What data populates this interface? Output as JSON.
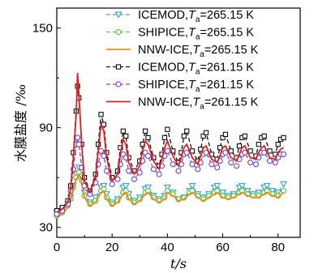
{
  "chart_data": {
    "type": "line",
    "xlabel": "t/s",
    "ylabel": "水膜盐度 /‰",
    "xlim": [
      0,
      88
    ],
    "ylim": [
      24,
      162
    ],
    "x_ticks": [
      "0",
      "20",
      "40",
      "60",
      "80"
    ],
    "y_ticks": [
      "30",
      "90",
      "150"
    ],
    "series": [
      {
        "name": "ICEMOD,Ta=265.15 K",
        "label_main": "ICEMOD,",
        "label_var": "T",
        "label_sub": "a",
        "label_tail": "=265.15 K",
        "color": "#3aa6dd",
        "line": "dashed",
        "marker": "triangle-down",
        "x": [
          0,
          2,
          4,
          5,
          6,
          7,
          8,
          9,
          10,
          12,
          14,
          16,
          17,
          18,
          20,
          22,
          24,
          25,
          26,
          28,
          30,
          32,
          33,
          35,
          37,
          39,
          40,
          42,
          44,
          46,
          48,
          49,
          51,
          53,
          55,
          57,
          58,
          60,
          62,
          64,
          66,
          67,
          69,
          71,
          73,
          75,
          76,
          78,
          80,
          82
        ],
        "y": [
          39,
          41,
          44,
          48,
          55,
          62,
          66,
          61,
          51,
          45,
          48,
          54,
          55,
          50,
          45,
          47,
          54,
          55,
          50,
          46,
          48,
          53,
          54,
          49,
          47,
          49,
          54,
          51,
          47,
          48,
          52,
          55,
          50,
          48,
          50,
          54,
          55,
          51,
          49,
          50,
          54,
          55,
          52,
          50,
          51,
          54,
          55,
          52,
          51,
          56
        ]
      },
      {
        "name": "SHIPICE,Ta=265.15 K",
        "label_main": "SHIPICE,",
        "label_var": "T",
        "label_sub": "a",
        "label_tail": "=265.15 K",
        "color": "#5cc93a",
        "line": "dashed",
        "marker": "circle",
        "x": [
          0,
          2,
          4,
          5,
          6,
          7,
          8,
          9,
          10,
          12,
          14,
          16,
          17,
          18,
          20,
          22,
          24,
          25,
          26,
          28,
          30,
          32,
          33,
          35,
          37,
          39,
          40,
          42,
          44,
          46,
          48,
          49,
          51,
          53,
          55,
          57,
          58,
          60,
          62,
          64,
          66,
          67,
          69,
          71,
          73,
          75,
          76,
          78,
          80,
          82
        ],
        "y": [
          37,
          39,
          43,
          47,
          54,
          60,
          63,
          58,
          49,
          44,
          46,
          52,
          53,
          48,
          44,
          46,
          51,
          52,
          48,
          45,
          47,
          51,
          52,
          48,
          46,
          48,
          52,
          50,
          47,
          48,
          51,
          52,
          49,
          47,
          49,
          51,
          52,
          49,
          48,
          49,
          51,
          52,
          50,
          49,
          49,
          51,
          52,
          50,
          49,
          52
        ]
      },
      {
        "name": "NNW-ICE,Ta=265.15 K",
        "label_main": "NNW-ICE,",
        "label_var": "T",
        "label_sub": "a",
        "label_tail": "=265.15 K",
        "color": "#f08c1e",
        "line": "solid",
        "marker": "none",
        "x": [
          0,
          2,
          4,
          5,
          6,
          7,
          8,
          9,
          10,
          12,
          14,
          16,
          17,
          18,
          20,
          22,
          24,
          25,
          26,
          28,
          30,
          32,
          33,
          35,
          37,
          39,
          40,
          42,
          44,
          46,
          48,
          49,
          51,
          53,
          55,
          57,
          58,
          60,
          62,
          64,
          66,
          67,
          69,
          71,
          73,
          75,
          76,
          78,
          80,
          82
        ],
        "y": [
          36,
          38,
          42,
          46,
          53,
          59,
          62,
          57,
          48,
          43,
          45,
          51,
          52,
          47,
          43,
          45,
          50,
          51,
          47,
          44,
          46,
          50,
          51,
          47,
          45,
          47,
          51,
          49,
          46,
          47,
          50,
          51,
          48,
          46,
          48,
          50,
          51,
          48,
          47,
          48,
          50,
          51,
          49,
          48,
          48,
          50,
          51,
          49,
          48,
          51
        ]
      },
      {
        "name": "ICEMOD,Ta=261.15 K",
        "label_main": "ICEMOD,",
        "label_var": "T",
        "label_sub": "a",
        "label_tail": "=261.15 K",
        "color": "#111111",
        "line": "dashed",
        "marker": "square",
        "x": [
          0,
          2,
          4,
          5,
          6,
          7,
          7.5,
          8,
          9,
          10,
          12,
          14,
          15,
          16,
          17,
          18,
          20,
          22,
          23,
          24,
          25,
          26,
          28,
          30,
          31,
          32,
          33,
          35,
          37,
          38,
          39,
          40,
          42,
          44,
          45,
          46,
          47,
          49,
          51,
          52,
          53,
          54,
          56,
          58,
          59,
          60,
          61,
          63,
          65,
          66,
          67,
          68,
          70,
          72,
          73,
          74,
          75,
          77,
          79,
          80,
          81,
          82
        ],
        "y": [
          40,
          42,
          46,
          55,
          75,
          100,
          115,
          108,
          80,
          60,
          52,
          62,
          80,
          98,
          92,
          75,
          60,
          64,
          78,
          88,
          85,
          72,
          64,
          70,
          80,
          88,
          84,
          72,
          67,
          74,
          84,
          89,
          76,
          69,
          75,
          85,
          88,
          76,
          70,
          77,
          85,
          87,
          74,
          71,
          78,
          84,
          86,
          76,
          72,
          79,
          84,
          85,
          76,
          73,
          80,
          84,
          85,
          76,
          74,
          80,
          83,
          84
        ]
      },
      {
        "name": "SHIPICE,Ta=261.15 K",
        "label_main": "SHIPICE,",
        "label_var": "T",
        "label_sub": "a",
        "label_tail": "=261.15 K",
        "color": "#7a4fd0",
        "line": "dashed",
        "marker": "circle",
        "x": [
          0,
          2,
          4,
          5,
          6,
          7,
          7.5,
          8,
          9,
          10,
          12,
          14,
          15,
          16,
          17,
          18,
          20,
          22,
          23,
          24,
          25,
          26,
          28,
          30,
          31,
          32,
          33,
          35,
          37,
          38,
          39,
          40,
          42,
          44,
          45,
          46,
          47,
          49,
          51,
          52,
          53,
          54,
          56,
          58,
          59,
          60,
          61,
          63,
          65,
          66,
          67,
          68,
          70,
          72,
          73,
          74,
          75,
          77,
          79,
          80,
          81,
          82
        ],
        "y": [
          38,
          40,
          44,
          52,
          65,
          80,
          84,
          80,
          66,
          55,
          50,
          57,
          68,
          76,
          73,
          64,
          56,
          59,
          68,
          74,
          72,
          64,
          59,
          63,
          70,
          75,
          73,
          65,
          62,
          67,
          73,
          76,
          68,
          64,
          68,
          74,
          75,
          68,
          65,
          69,
          74,
          75,
          68,
          66,
          70,
          74,
          75,
          69,
          67,
          71,
          74,
          75,
          69,
          68,
          72,
          75,
          75,
          70,
          69,
          72,
          74,
          74
        ]
      },
      {
        "name": "NNW-ICE,Ta=261.15 K",
        "label_main": "NNW-ICE,",
        "label_var": "T",
        "label_sub": "a",
        "label_tail": "=261.15 K",
        "color": "#e02020",
        "line": "solid",
        "marker": "none",
        "x": [
          0,
          2,
          4,
          5,
          6,
          7,
          7.5,
          8,
          9,
          10,
          12,
          14,
          15,
          16,
          17,
          18,
          20,
          22,
          23,
          24,
          25,
          26,
          28,
          30,
          31,
          32,
          33,
          35,
          37,
          38,
          39,
          40,
          42,
          44,
          45,
          46,
          47,
          49,
          51,
          52,
          53,
          54,
          56,
          58,
          59,
          60,
          61,
          63,
          65,
          66,
          67,
          68,
          70,
          72,
          73,
          74,
          75,
          77,
          79,
          80,
          81,
          82
        ],
        "y": [
          39,
          41,
          45,
          53,
          72,
          98,
          123,
          110,
          80,
          58,
          51,
          60,
          76,
          92,
          88,
          72,
          58,
          62,
          74,
          83,
          80,
          69,
          62,
          67,
          76,
          82,
          80,
          70,
          65,
          71,
          78,
          82,
          73,
          67,
          72,
          78,
          80,
          72,
          68,
          73,
          78,
          79,
          71,
          69,
          73,
          78,
          79,
          72,
          70,
          74,
          78,
          79,
          72,
          71,
          75,
          78,
          79,
          72,
          71,
          75,
          77,
          78
        ]
      }
    ]
  }
}
